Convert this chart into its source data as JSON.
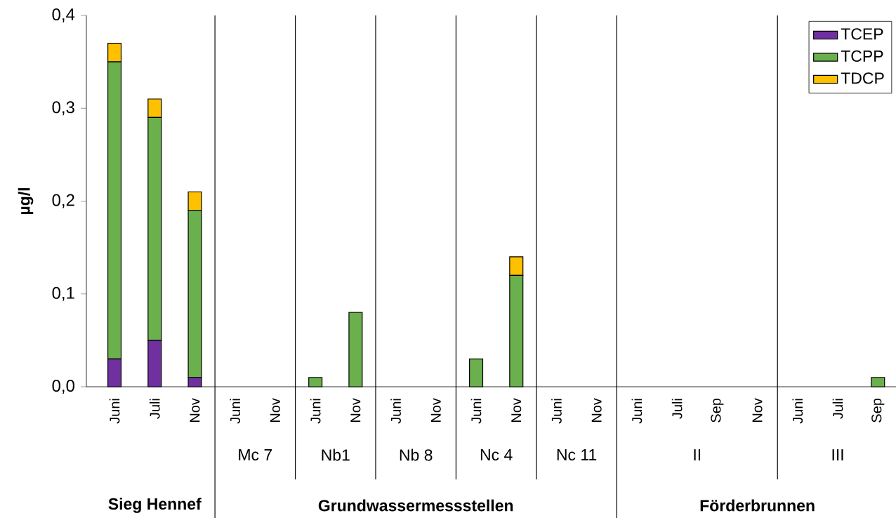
{
  "chart_data": {
    "type": "bar",
    "stacked": true,
    "ylabel": "µg/l",
    "categories": [
      "Juni",
      "Juli",
      "Nov",
      "Juni",
      "Nov",
      "Juni",
      "Nov",
      "Juni",
      "Nov",
      "Juni",
      "Nov",
      "Juni",
      "Nov",
      "Juni",
      "Juli",
      "Sep",
      "Nov",
      "Juni",
      "Juli",
      "Sep"
    ],
    "series": [
      {
        "name": "TCEP",
        "color": "#7030a0",
        "values": [
          0.03,
          0.05,
          0.01,
          0,
          0,
          0,
          0,
          0,
          0,
          0,
          0,
          0,
          0,
          0,
          0,
          0,
          0,
          0,
          0,
          0
        ]
      },
      {
        "name": "TCPP",
        "color": "#6ab04c",
        "values": [
          0.32,
          0.24,
          0.18,
          0,
          0,
          0.01,
          0.08,
          0,
          0,
          0.03,
          0.12,
          0,
          0,
          0,
          0,
          0,
          0,
          0,
          0,
          0.01
        ]
      },
      {
        "name": "TDCP",
        "color": "#ffc000",
        "values": [
          0.02,
          0.02,
          0.02,
          0,
          0,
          0,
          0,
          0,
          0,
          0,
          0.02,
          0,
          0,
          0,
          0,
          0,
          0,
          0,
          0,
          0
        ]
      }
    ],
    "ylim": [
      0,
      0.4
    ],
    "yticks": [
      {
        "value": 0,
        "label": "0,0"
      },
      {
        "value": 0.1,
        "label": "0,1"
      },
      {
        "value": 0.2,
        "label": "0,2"
      },
      {
        "value": 0.3,
        "label": "0,3"
      },
      {
        "value": 0.4,
        "label": "0,4"
      }
    ],
    "legend": "top right",
    "annotations": [
      "Mc 7",
      "Nb1",
      "Nb 8",
      "Nc 4",
      "Nc 11",
      "II",
      "III",
      "Sieg Hennef",
      "Grundwassermessstellen",
      "Förderbrunnen"
    ]
  }
}
